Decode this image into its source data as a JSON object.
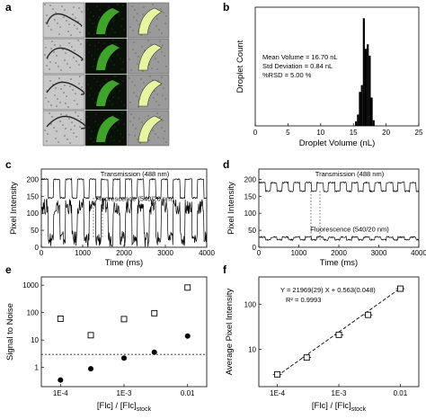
{
  "panel_labels": {
    "a": "a",
    "b": "b",
    "c": "c",
    "d": "d",
    "e": "e",
    "f": "f"
  },
  "chart_data": [
    {
      "panel": "a",
      "type": "other",
      "description_hidden": true
    },
    {
      "panel": "b",
      "type": "bar",
      "xlabel": "Droplet Volume (nL)",
      "ylabel": "Droplet Count",
      "xlim": [
        0,
        25
      ],
      "xticks": [
        "0",
        "5",
        "10",
        "15",
        "20",
        "25"
      ],
      "bins": [
        15.4,
        15.7,
        16.0,
        16.3,
        16.6,
        16.9,
        17.2,
        17.5,
        17.8,
        18.1
      ],
      "values": [
        0.04,
        0.1,
        0.3,
        0.36,
        0.95,
        0.68,
        0.72,
        0.62,
        0.25,
        0.05
      ],
      "annotations": [
        "Mean Volume = 16.70 nL",
        "Std Deviation = 0.84 nL",
        "%RSD = 5.00 %"
      ]
    },
    {
      "panel": "c",
      "type": "line",
      "xlabel": "Time (ms)",
      "ylabel": "Pixel Intensity",
      "xlim": [
        0,
        4000
      ],
      "ylim": [
        0,
        230
      ],
      "xticks": [
        "0",
        "1000",
        "2000",
        "3000",
        "4000"
      ],
      "yticks": [
        "0",
        "50",
        "100",
        "150",
        "200"
      ],
      "series": [
        {
          "name": "Transmission (488 nm)",
          "high": 200,
          "low": 145,
          "period_ms": 290,
          "duty": 0.55
        },
        {
          "name": "Fluorescence (540/20 nm)",
          "high": 120,
          "low": 25,
          "period_ms": 290,
          "duty": 0.55
        }
      ]
    },
    {
      "panel": "d",
      "type": "line",
      "xlabel": "Time (ms)",
      "ylabel": "Pixel Intensity",
      "xlim": [
        0,
        4000
      ],
      "ylim": [
        0,
        230
      ],
      "xticks": [
        "0",
        "1000",
        "2000",
        "3000",
        "4000"
      ],
      "yticks": [
        "0",
        "50",
        "100",
        "150",
        "200"
      ],
      "series": [
        {
          "name": "Transmission (488 nm)",
          "high": 190,
          "low": 165,
          "period_ms": 290,
          "duty": 0.55
        },
        {
          "name": "Fluorescence (540/20 nm)",
          "high": 30,
          "low": 22,
          "period_ms": 290,
          "duty": 0.55
        }
      ]
    },
    {
      "panel": "e",
      "type": "scatter",
      "xscale": "log",
      "yscale": "log",
      "xlabel": "[Flc] / [Flc]",
      "xlabel_sub": "stock",
      "ylabel": "Signal to Noise",
      "xlim": [
        5e-05,
        0.02
      ],
      "ylim": [
        0.2,
        2000
      ],
      "xticks": [
        "1E-4",
        "1E-3",
        "0.01"
      ],
      "yticks": [
        "1",
        "10",
        "100",
        "1000"
      ],
      "threshold": 3,
      "series": [
        {
          "marker": "open-square",
          "x": [
            0.0001,
            0.0003,
            0.001,
            0.003,
            0.01
          ],
          "y": [
            60,
            15,
            58,
            95,
            820
          ]
        },
        {
          "marker": "filled-circle",
          "x": [
            0.0001,
            0.0003,
            0.001,
            0.003,
            0.01
          ],
          "y": [
            0.35,
            0.9,
            2.2,
            3.6,
            14
          ]
        }
      ]
    },
    {
      "panel": "f",
      "type": "scatter",
      "xscale": "log",
      "yscale": "log",
      "xlabel": "[Flc] / [Flc]",
      "xlabel_sub": "stock",
      "ylabel": "Average Pixel Intensity",
      "xlim": [
        5e-05,
        0.02
      ],
      "ylim": [
        1.5,
        400
      ],
      "xticks": [
        "1E-4",
        "1E-3",
        "0.01"
      ],
      "yticks": [
        "10",
        "100"
      ],
      "annotations": [
        "Y = 21969(29) X + 0.563(0.048)",
        "R² = 0.9993"
      ],
      "series": [
        {
          "marker": "open-square",
          "x": [
            0.0001,
            0.0003,
            0.001,
            0.003,
            0.01
          ],
          "y": [
            2.8,
            6.6,
            21,
            58,
            220
          ]
        }
      ]
    }
  ]
}
